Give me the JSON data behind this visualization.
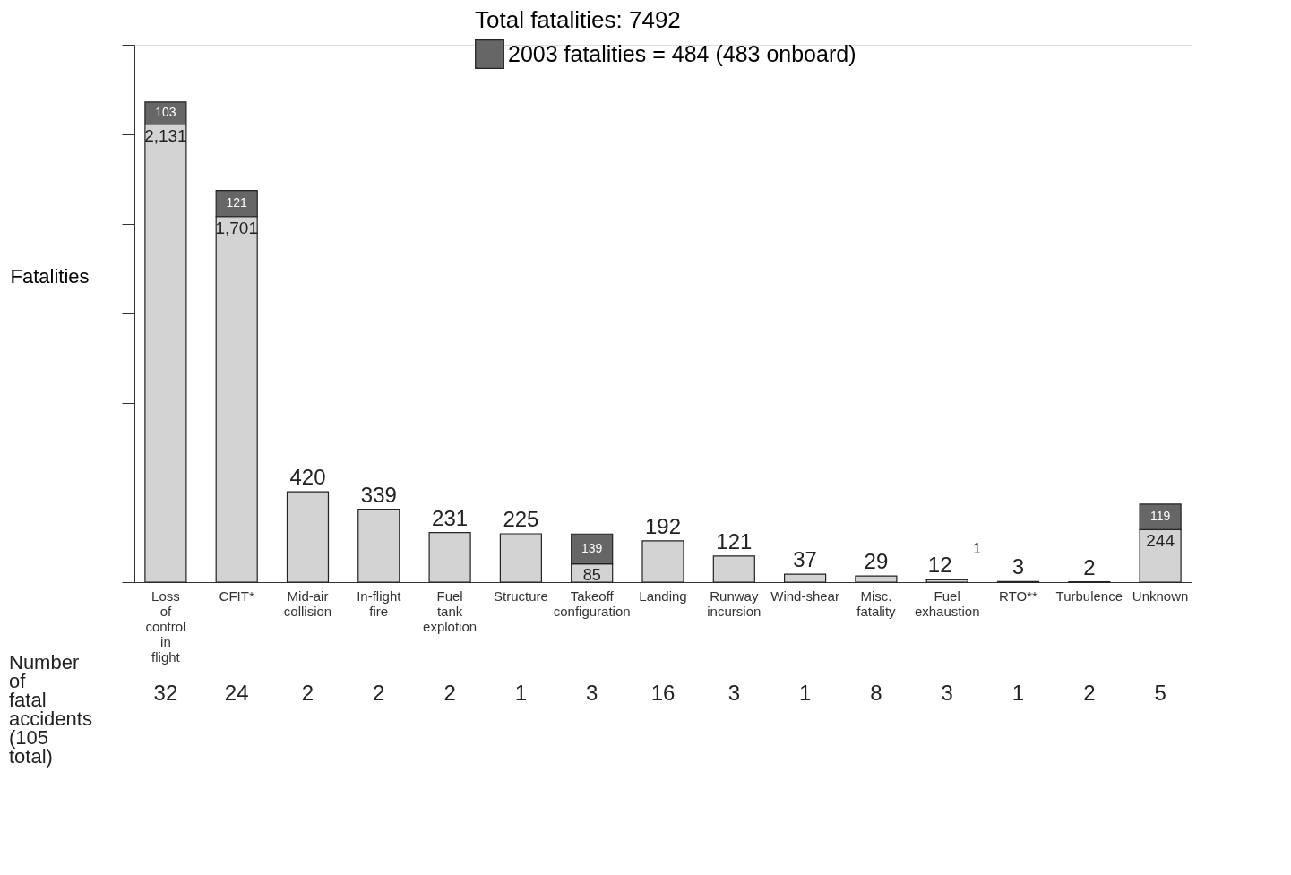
{
  "chart_data": {
    "type": "bar",
    "stacked": true,
    "ylabel": "Fatalities",
    "legend_title": "Total fatalities:  7492",
    "legend": "top",
    "categories": [
      "Loss of control in flight",
      "CFIT*",
      "Mid-air collision",
      "In-flight fire",
      "Fuel tank explotion",
      "Structure",
      "Takeoff configuration",
      "Landing",
      "Runway incursion",
      "Wind-shear",
      "Misc. fatality",
      "Fuel exhaustion",
      "RTO**",
      "Turbulence",
      "Unknown"
    ],
    "series": [
      {
        "color": "#d3d3d3",
        "values": [
          2131,
          1701,
          420,
          339,
          231,
          225,
          85,
          192,
          121,
          37,
          29,
          12,
          3,
          2,
          244
        ],
        "value_labels": [
          "2,131",
          "1,701",
          "420",
          "339",
          "231",
          "225",
          "85",
          "192",
          "121",
          "37",
          "29",
          "12",
          "3",
          "2",
          "244"
        ]
      },
      {
        "name": "2003 fatalities = 484 (483 onboard)",
        "color": "#666666",
        "values": [
          103,
          121,
          null,
          null,
          null,
          null,
          139,
          null,
          null,
          null,
          null,
          1,
          null,
          null,
          119
        ],
        "value_labels": [
          "103",
          "121",
          null,
          null,
          null,
          null,
          "139",
          null,
          null,
          null,
          null,
          "1",
          null,
          null,
          "119"
        ]
      }
    ],
    "ylim": [
      0,
      2500
    ],
    "yticks": [
      {
        "value": 0,
        "label": null
      },
      {
        "value": 417,
        "label": null
      },
      {
        "value": 833,
        "label": null
      },
      {
        "value": 1250,
        "label": null
      },
      {
        "value": 1667,
        "label": null
      },
      {
        "value": 2083,
        "label": null
      },
      {
        "value": 2500,
        "label": null
      }
    ],
    "grid": false,
    "annotations": [
      "Number of fatal accidents (105 total)",
      "32",
      "24",
      "2",
      "2",
      "2",
      "1",
      "3",
      "16",
      "3",
      "1",
      "8",
      "3",
      "1",
      "2",
      "5"
    ]
  }
}
